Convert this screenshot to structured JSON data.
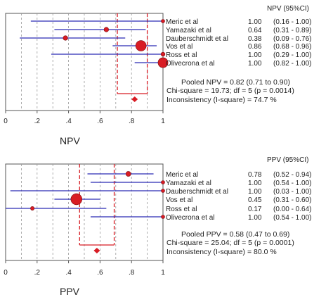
{
  "chart_data": [
    {
      "type": "forest",
      "panel_label": "NPV",
      "stat_header": "NPV (95%CI)",
      "xlim": [
        0,
        1
      ],
      "x_ticks": [
        "0",
        ".2",
        ".4",
        ".6",
        ".8",
        "1"
      ],
      "studies": [
        {
          "name": "Meric et al",
          "est": 1.0,
          "lo": 0.16,
          "hi": 1.0,
          "weight": 1.0,
          "text": "1.00",
          "ci_text": "(0.16 - 1.00)"
        },
        {
          "name": "Yamazaki et al",
          "est": 0.64,
          "lo": 0.31,
          "hi": 0.89,
          "weight": 1.5,
          "text": "0.64",
          "ci_text": "(0.31 - 0.89)"
        },
        {
          "name": "Dauberschmidt et al",
          "est": 0.38,
          "lo": 0.09,
          "hi": 0.76,
          "weight": 1.5,
          "text": "0.38",
          "ci_text": "(0.09 - 0.76)"
        },
        {
          "name": "Vos et al",
          "est": 0.86,
          "lo": 0.68,
          "hi": 0.96,
          "weight": 3.4,
          "text": "0.86",
          "ci_text": "(0.68 - 0.96)"
        },
        {
          "name": "Ross et al",
          "est": 1.0,
          "lo": 0.29,
          "hi": 1.0,
          "weight": 1.3,
          "text": "1.00",
          "ci_text": "(0.29 - 1.00)"
        },
        {
          "name": "Olivecrona et al",
          "est": 1.0,
          "lo": 0.82,
          "hi": 1.0,
          "weight": 3.2,
          "text": "1.00",
          "ci_text": "(0.82 - 1.00)"
        }
      ],
      "pooled": {
        "est": 0.82,
        "lo": 0.71,
        "hi": 0.9
      },
      "pooled_text": "Pooled  NPV  = 0.82 (0.71 to 0.90)",
      "chi_text": "Chi-square = 19.73; df =  5 (p = 0.0014)",
      "inconsistency_text": "Inconsistency (I-square) = 74.7 %",
      "colors": {
        "ci_line": "#2b2bb5",
        "marker": "#d81c24",
        "pooled": "#d81c24",
        "grid": "#9a9a9a"
      }
    },
    {
      "type": "forest",
      "panel_label": "PPV",
      "stat_header": "PPV (95%CI)",
      "xlim": [
        0,
        1
      ],
      "x_ticks": [
        "0",
        ".2",
        ".4",
        ".6",
        ".8",
        "1"
      ],
      "studies": [
        {
          "name": "Meric et al",
          "est": 0.78,
          "lo": 0.52,
          "hi": 0.94,
          "weight": 1.6,
          "text": "0.78",
          "ci_text": "(0.52 - 0.94)"
        },
        {
          "name": "Yamazaki et al",
          "est": 1.0,
          "lo": 0.54,
          "hi": 1.0,
          "weight": 1.0,
          "text": "1.00",
          "ci_text": "(0.54 - 1.00)"
        },
        {
          "name": "Dauberschmidt et al",
          "est": 1.0,
          "lo": 0.03,
          "hi": 1.0,
          "weight": 0.9,
          "text": "1.00",
          "ci_text": "(0.03 - 1.00)"
        },
        {
          "name": "Vos et al",
          "est": 0.45,
          "lo": 0.31,
          "hi": 0.6,
          "weight": 3.6,
          "text": "0.45",
          "ci_text": "(0.31 - 0.60)"
        },
        {
          "name": "Ross et al",
          "est": 0.17,
          "lo": 0.0,
          "hi": 0.64,
          "weight": 1.2,
          "text": "0.17",
          "ci_text": "(0.00 - 0.64)"
        },
        {
          "name": "Olivecrona et al",
          "est": 1.0,
          "lo": 0.54,
          "hi": 1.0,
          "weight": 1.0,
          "text": "1.00",
          "ci_text": "(0.54 - 1.00)"
        }
      ],
      "pooled": {
        "est": 0.58,
        "lo": 0.47,
        "hi": 0.69
      },
      "pooled_text": "Pooled  PPV  = 0.58 (0.47 to 0.69)",
      "chi_text": "Chi-square = 25.04; df =  5 (p = 0.0001)",
      "inconsistency_text": "Inconsistency (I-square) = 80.0 %",
      "colors": {
        "ci_line": "#2b2bb5",
        "marker": "#d81c24",
        "pooled": "#d81c24",
        "grid": "#9a9a9a"
      }
    }
  ]
}
